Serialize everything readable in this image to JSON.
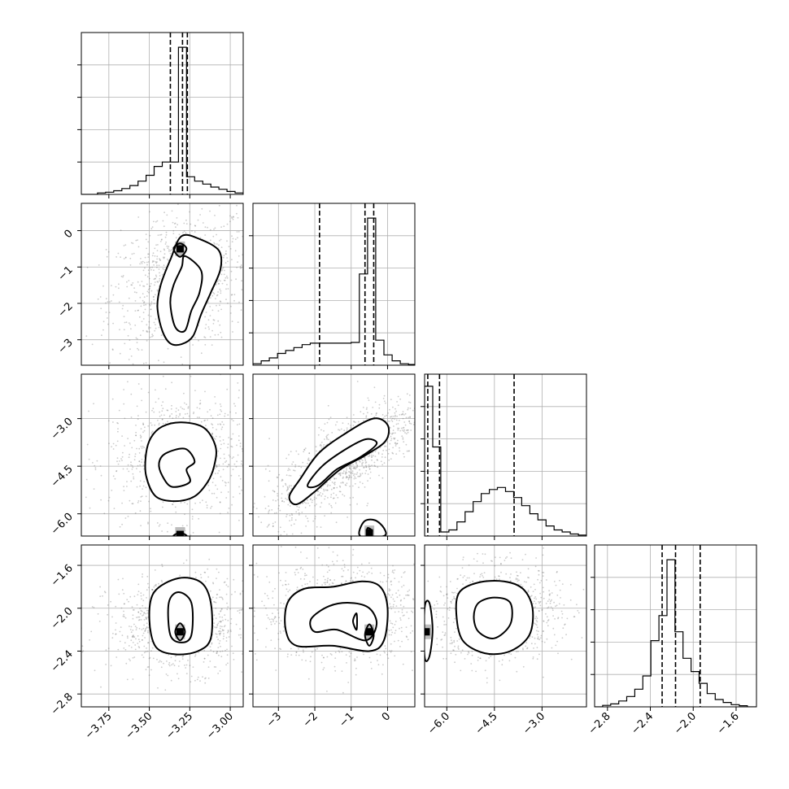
{
  "chart_data": {
    "type": "corner",
    "grid": true,
    "histograms": [
      {
        "xlim": [
          -3.92,
          -2.92
        ],
        "bin_edges": [
          -3.92,
          -3.87,
          -3.82,
          -3.77,
          -3.72,
          -3.67,
          -3.62,
          -3.57,
          -3.52,
          -3.47,
          -3.42,
          -3.37,
          -3.32,
          -3.27,
          -3.22,
          -3.17,
          -3.12,
          -3.07,
          -3.02,
          -2.97,
          -2.92
        ],
        "counts": [
          0,
          0,
          0.01,
          0.015,
          0.025,
          0.04,
          0.06,
          0.09,
          0.13,
          0.19,
          0.22,
          0.22,
          1.0,
          0.12,
          0.09,
          0.07,
          0.05,
          0.035,
          0.02,
          0.01
        ],
        "quantiles": [
          -3.37,
          -3.295,
          -3.265
        ],
        "ylim": [
          0,
          1.1
        ]
      },
      {
        "xlim": [
          -3.7,
          0.75
        ],
        "bin_edges": [
          -3.7,
          -3.475,
          -3.25,
          -3.025,
          -2.8,
          -2.575,
          -2.35,
          -2.125,
          -1.9,
          -1.675,
          -1.45,
          -1.225,
          -1.0,
          -0.775,
          -0.55,
          -0.325,
          -0.1,
          0.125,
          0.35,
          0.575,
          0.75
        ],
        "counts": [
          0.01,
          0.03,
          0.05,
          0.08,
          0.1,
          0.12,
          0.14,
          0.15,
          0.15,
          0.15,
          0.15,
          0.15,
          0.155,
          0.62,
          1.0,
          0.17,
          0.07,
          0.03,
          0.01,
          0.005
        ],
        "quantiles": [
          -1.87,
          -0.62,
          -0.38
        ],
        "ylim": [
          0,
          1.1
        ]
      },
      {
        "xlim": [
          -6.7,
          -1.6
        ],
        "bin_edges": [
          -6.7,
          -6.445,
          -6.19,
          -5.935,
          -5.68,
          -5.425,
          -5.17,
          -4.915,
          -4.66,
          -4.405,
          -4.15,
          -3.895,
          -3.64,
          -3.385,
          -3.13,
          -2.875,
          -2.62,
          -2.365,
          -2.11,
          -1.855,
          -1.6
        ],
        "counts": [
          0.74,
          0.44,
          0.02,
          0.03,
          0.07,
          0.12,
          0.17,
          0.21,
          0.23,
          0.24,
          0.22,
          0.19,
          0.15,
          0.11,
          0.08,
          0.05,
          0.03,
          0.02,
          0.01,
          0.005
        ],
        "quantiles": [
          -6.6,
          -6.23,
          -3.88
        ],
        "ylim": [
          0,
          0.8
        ]
      },
      {
        "xlim": [
          -2.92,
          -1.41
        ],
        "bin_edges": [
          -2.92,
          -2.845,
          -2.77,
          -2.695,
          -2.62,
          -2.545,
          -2.47,
          -2.395,
          -2.32,
          -2.245,
          -2.17,
          -2.095,
          -2.02,
          -1.945,
          -1.87,
          -1.795,
          -1.72,
          -1.645,
          -1.57,
          -1.495,
          -1.41
        ],
        "counts": [
          0,
          0.01,
          0.02,
          0.04,
          0.07,
          0.12,
          0.21,
          0.45,
          0.62,
          1.0,
          0.51,
          0.33,
          0.24,
          0.16,
          0.09,
          0.05,
          0.03,
          0.015,
          0.008,
          0
        ],
        "quantiles": [
          -2.29,
          -2.165,
          -1.935
        ],
        "ylim": [
          0,
          1.1
        ]
      }
    ],
    "axes": [
      {
        "lim": [
          -3.92,
          -2.92
        ],
        "ticks": [
          "−3.75",
          "−3.50",
          "−3.25",
          "−3.00"
        ],
        "tick_values": [
          -3.75,
          -3.5,
          -3.25,
          -3.0
        ]
      },
      {
        "lim": [
          -3.7,
          0.75
        ],
        "ticks": [
          "−3",
          "−2",
          "−1",
          "0"
        ],
        "tick_values": [
          -3,
          -2,
          -1,
          0
        ]
      },
      {
        "lim": [
          -6.7,
          -1.6
        ],
        "ticks": [
          "−6.0",
          "−4.5",
          "−3.0"
        ],
        "tick_values": [
          -6.0,
          -4.5,
          -3.0
        ]
      },
      {
        "lim": [
          -2.92,
          -1.41
        ],
        "ticks": [
          "−2.8",
          "−2.4",
          "−2.0",
          "−1.6"
        ],
        "tick_values": [
          -2.8,
          -2.4,
          -2.0,
          -1.6
        ]
      }
    ],
    "pairs": [
      {
        "row": 1,
        "col": 0,
        "scatter": {
          "cx": -3.31,
          "cy": -1.4,
          "sx": 0.19,
          "sy": 0.85,
          "rho": 0.25,
          "n": 900
        },
        "contours": [
          [
            [
              -3.3,
              -0.15
            ],
            [
              -3.18,
              -0.25
            ],
            [
              -3.07,
              -0.55
            ],
            [
              -3.06,
              -1.05
            ],
            [
              -3.12,
              -1.7
            ],
            [
              -3.18,
              -2.3
            ],
            [
              -3.23,
              -2.9
            ],
            [
              -3.3,
              -3.12
            ],
            [
              -3.37,
              -3.1
            ],
            [
              -3.42,
              -2.75
            ],
            [
              -3.45,
              -2.1
            ],
            [
              -3.43,
              -1.5
            ],
            [
              -3.37,
              -0.8
            ]
          ],
          [
            [
              -3.28,
              -0.7
            ],
            [
              -3.18,
              -1.1
            ],
            [
              -3.19,
              -1.7
            ],
            [
              -3.24,
              -2.2
            ],
            [
              -3.28,
              -2.75
            ],
            [
              -3.34,
              -2.65
            ],
            [
              -3.37,
              -2.0
            ],
            [
              -3.35,
              -1.5
            ],
            [
              -3.3,
              -1.0
            ]
          ],
          [
            [
              -3.31,
              -0.35
            ],
            [
              -3.27,
              -0.5
            ],
            [
              -3.31,
              -0.72
            ],
            [
              -3.35,
              -0.5
            ]
          ]
        ],
        "peaks": [
          [
            -3.31,
            -0.5
          ]
        ]
      },
      {
        "row": 2,
        "col": 0,
        "scatter": {
          "cx": -3.31,
          "cy": -4.2,
          "sx": 0.19,
          "sy": 0.85,
          "rho": 0.05,
          "n": 900
        },
        "contours": [
          [
            [
              -3.42,
              -3.25
            ],
            [
              -3.3,
              -3.12
            ],
            [
              -3.16,
              -3.3
            ],
            [
              -3.09,
              -3.9
            ],
            [
              -3.1,
              -4.5
            ],
            [
              -3.14,
              -5.0
            ],
            [
              -3.22,
              -5.45
            ],
            [
              -3.34,
              -5.6
            ],
            [
              -3.46,
              -5.45
            ],
            [
              -3.52,
              -4.8
            ],
            [
              -3.52,
              -4.1
            ],
            [
              -3.49,
              -3.6
            ]
          ],
          [
            [
              -3.4,
              -4.1
            ],
            [
              -3.28,
              -3.95
            ],
            [
              -3.22,
              -4.35
            ],
            [
              -3.27,
              -4.6
            ],
            [
              -3.25,
              -5.0
            ],
            [
              -3.36,
              -5.15
            ],
            [
              -3.42,
              -4.8
            ],
            [
              -3.44,
              -4.4
            ]
          ],
          [
            [
              -3.31,
              -6.6
            ],
            [
              -3.27,
              -6.7
            ],
            [
              -3.35,
              -6.7
            ]
          ]
        ],
        "peaks": [
          [
            -3.31,
            -6.65
          ]
        ]
      },
      {
        "row": 2,
        "col": 1,
        "scatter": {
          "cx": -1.2,
          "cy": -4.3,
          "sx": 0.9,
          "sy": 0.85,
          "rho": 0.78,
          "n": 1100
        },
        "contours": [
          [
            [
              -2.7,
              -5.45
            ],
            [
              -2.4,
              -4.9
            ],
            [
              -1.9,
              -4.1
            ],
            [
              -1.2,
              -3.5
            ],
            [
              -0.4,
              -3.0
            ],
            [
              0.0,
              -3.2
            ],
            [
              -0.05,
              -3.7
            ],
            [
              -0.6,
              -4.15
            ],
            [
              -1.3,
              -4.6
            ],
            [
              -2.0,
              -5.3
            ],
            [
              -2.5,
              -5.7
            ]
          ],
          [
            [
              -2.2,
              -5.1
            ],
            [
              -1.8,
              -4.5
            ],
            [
              -1.2,
              -4.0
            ],
            [
              -0.6,
              -3.65
            ],
            [
              -0.3,
              -3.8
            ],
            [
              -0.8,
              -4.25
            ],
            [
              -1.4,
              -4.6
            ],
            [
              -1.9,
              -5.1
            ]
          ],
          [
            [
              -0.75,
              -6.7
            ],
            [
              -0.65,
              -6.25
            ],
            [
              -0.35,
              -6.2
            ],
            [
              -0.1,
              -6.45
            ],
            [
              -0.1,
              -6.7
            ]
          ],
          [
            [
              -0.55,
              -6.45
            ],
            [
              -0.42,
              -6.55
            ],
            [
              -0.55,
              -6.7
            ]
          ]
        ],
        "peaks": [
          [
            -0.5,
            -6.6
          ]
        ]
      },
      {
        "row": 3,
        "col": 0,
        "scatter": {
          "cx": -3.31,
          "cy": -2.15,
          "sx": 0.19,
          "sy": 0.19,
          "rho": 0.0,
          "n": 900
        },
        "contours": [
          [
            [
              -3.32,
              -1.72
            ],
            [
              -3.18,
              -1.76
            ],
            [
              -3.12,
              -1.95
            ],
            [
              -3.12,
              -2.28
            ],
            [
              -3.2,
              -2.4
            ],
            [
              -3.34,
              -2.43
            ],
            [
              -3.46,
              -2.36
            ],
            [
              -3.5,
              -2.1
            ],
            [
              -3.47,
              -1.85
            ]
          ],
          [
            [
              -3.32,
              -1.85
            ],
            [
              -3.24,
              -1.95
            ],
            [
              -3.24,
              -2.25
            ],
            [
              -3.3,
              -2.32
            ],
            [
              -3.37,
              -2.25
            ],
            [
              -3.38,
              -1.95
            ]
          ],
          [
            [
              -3.31,
              -2.14
            ],
            [
              -3.28,
              -2.22
            ],
            [
              -3.31,
              -2.3
            ],
            [
              -3.34,
              -2.22
            ]
          ]
        ],
        "peaks": [
          [
            -3.31,
            -2.22
          ]
        ]
      },
      {
        "row": 3,
        "col": 1,
        "scatter": {
          "cx": -1.3,
          "cy": -2.05,
          "sx": 0.95,
          "sy": 0.19,
          "rho": 0.0,
          "n": 1100
        },
        "contours": [
          [
            [
              -2.75,
              -1.95
            ],
            [
              -2.3,
              -1.82
            ],
            [
              -1.5,
              -1.8
            ],
            [
              -0.7,
              -1.75
            ],
            [
              -0.2,
              -1.8
            ],
            [
              0.0,
              -2.0
            ],
            [
              -0.1,
              -2.3
            ],
            [
              -0.5,
              -2.4
            ],
            [
              -1.5,
              -2.35
            ],
            [
              -2.5,
              -2.35
            ],
            [
              -2.8,
              -2.2
            ]
          ],
          [
            [
              -2.1,
              -2.1
            ],
            [
              -1.6,
              -1.98
            ],
            [
              -1.0,
              -1.95
            ],
            [
              -0.5,
              -2.0
            ],
            [
              -0.3,
              -2.15
            ],
            [
              -0.6,
              -2.3
            ],
            [
              -1.4,
              -2.2
            ],
            [
              -2.0,
              -2.22
            ]
          ],
          [
            [
              -0.95,
              -2.12
            ],
            [
              -0.85,
              -2.05
            ],
            [
              -0.85,
              -2.2
            ]
          ],
          [
            [
              -0.5,
              -2.15
            ],
            [
              -0.38,
              -2.25
            ],
            [
              -0.5,
              -2.35
            ],
            [
              -0.62,
              -2.25
            ]
          ]
        ],
        "peaks": [
          [
            -0.5,
            -2.22
          ]
        ]
      },
      {
        "row": 3,
        "col": 2,
        "scatter": {
          "cx": -4.4,
          "cy": -2.05,
          "sx": 0.85,
          "sy": 0.19,
          "rho": 0.05,
          "n": 1000
        },
        "contours": [
          [
            [
              -5.6,
              -1.85
            ],
            [
              -5.0,
              -1.76
            ],
            [
              -4.2,
              -1.75
            ],
            [
              -3.6,
              -1.82
            ],
            [
              -3.3,
              -2.0
            ],
            [
              -3.4,
              -2.25
            ],
            [
              -4.0,
              -2.4
            ],
            [
              -4.8,
              -2.42
            ],
            [
              -5.5,
              -2.3
            ],
            [
              -5.7,
              -2.05
            ]
          ],
          [
            [
              -5.0,
              -1.95
            ],
            [
              -4.5,
              -1.9
            ],
            [
              -4.0,
              -1.95
            ],
            [
              -4.0,
              -2.15
            ],
            [
              -4.5,
              -2.28
            ],
            [
              -5.0,
              -2.22
            ],
            [
              -5.15,
              -2.08
            ]
          ],
          [
            [
              -6.7,
              -2.0
            ],
            [
              -6.55,
              -1.95
            ],
            [
              -6.45,
              -2.2
            ],
            [
              -6.55,
              -2.45
            ],
            [
              -6.7,
              -2.45
            ]
          ]
        ],
        "peaks": [
          [
            -6.65,
            -2.22
          ]
        ]
      }
    ]
  }
}
